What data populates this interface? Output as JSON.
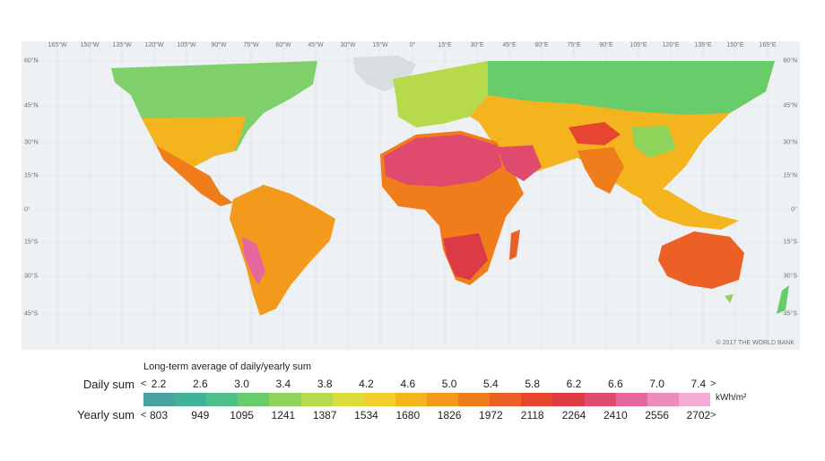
{
  "map": {
    "longitude_labels": [
      "165°W",
      "150°W",
      "135°W",
      "120°W",
      "105°W",
      "90°W",
      "75°W",
      "60°W",
      "45°W",
      "30°W",
      "15°W",
      "0°",
      "15°E",
      "30°E",
      "45°E",
      "60°E",
      "75°E",
      "90°E",
      "105°E",
      "120°E",
      "135°E",
      "150°E",
      "165°E"
    ],
    "latitude_labels": [
      "60°N",
      "45°N",
      "30°N",
      "15°N",
      "0°",
      "15°S",
      "30°S",
      "45°S"
    ],
    "copyright": "© 2017 THE WORLD BANK"
  },
  "legend": {
    "title": "Long-term average of daily/yearly sum",
    "daily_label": "Daily sum",
    "yearly_label": "Yearly sum",
    "less_symbol": "<",
    "greater_symbol": ">",
    "unit": "kWh/m²",
    "daily_values": [
      "2.2",
      "2.6",
      "3.0",
      "3.4",
      "3.8",
      "4.2",
      "4.6",
      "5.0",
      "5.4",
      "5.8",
      "6.2",
      "6.6",
      "7.0",
      "7.4"
    ],
    "yearly_values": [
      "803",
      "949",
      "1095",
      "1241",
      "1387",
      "1534",
      "1680",
      "1826",
      "1972",
      "2118",
      "2264",
      "2410",
      "2556",
      "2702"
    ],
    "colors": [
      "#4aa3a0",
      "#41b29a",
      "#4cc088",
      "#68cc6a",
      "#8fd45a",
      "#b6da4c",
      "#d9de3e",
      "#f0cf2c",
      "#f4b41e",
      "#f39a1c",
      "#f07d1c",
      "#ec5f25",
      "#e6452f",
      "#dc3a45",
      "#e04a6c",
      "#e6679a",
      "#ee8bbd",
      "#f4acd6"
    ]
  },
  "continent_colors": {
    "north_america": "#7fcf6a",
    "central_america": "#f07d1c",
    "south_america": "#f39a1c",
    "europe": "#b6da4c",
    "africa": "#f07d1c",
    "sahara": "#e04a6c",
    "asia": "#f4b41e",
    "siberia": "#68cc6a",
    "australia": "#ec5f25",
    "greenland": "#d8dde2"
  }
}
